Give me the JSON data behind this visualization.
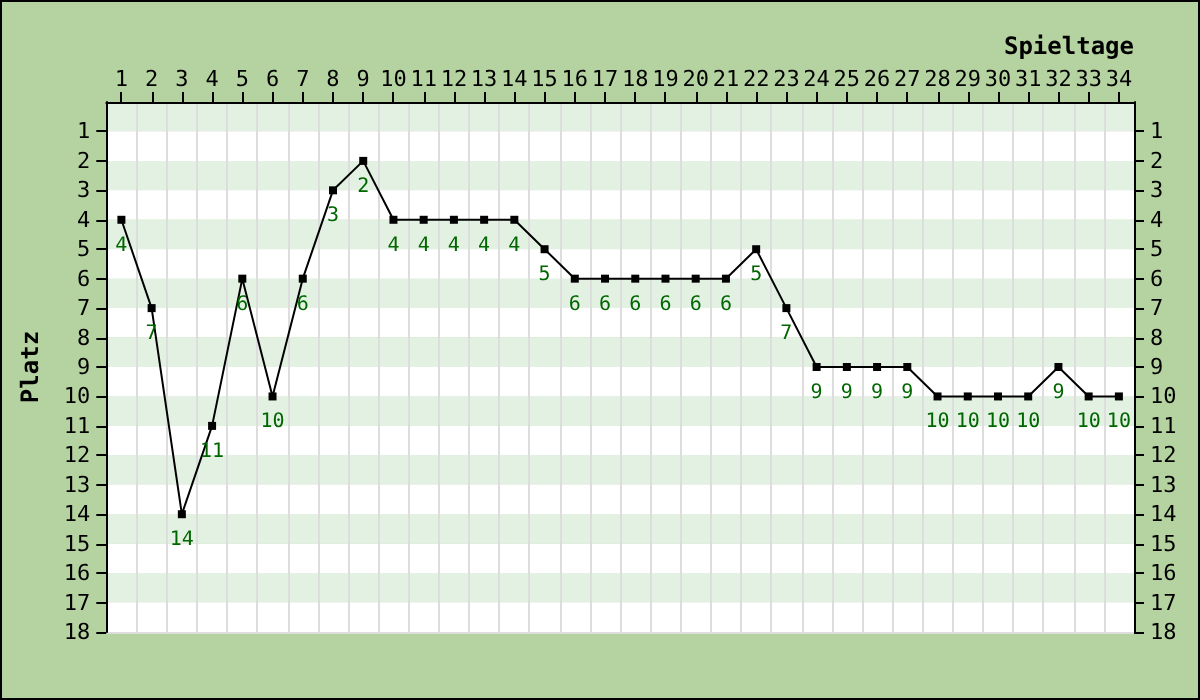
{
  "chart_data": {
    "type": "line",
    "xlabel": "Spieltage",
    "ylabel": "Platz",
    "categories": [
      "1",
      "2",
      "3",
      "4",
      "5",
      "6",
      "7",
      "8",
      "9",
      "10",
      "11",
      "12",
      "13",
      "14",
      "15",
      "16",
      "17",
      "18",
      "19",
      "20",
      "21",
      "22",
      "23",
      "24",
      "25",
      "26",
      "27",
      "28",
      "29",
      "30",
      "31",
      "32",
      "33",
      "34"
    ],
    "series": [
      {
        "color": "#000000",
        "values": [
          4,
          7,
          14,
          11,
          6,
          10,
          6,
          3,
          2,
          4,
          4,
          4,
          4,
          4,
          5,
          6,
          6,
          6,
          6,
          6,
          6,
          5,
          7,
          9,
          9,
          9,
          9,
          10,
          10,
          10,
          10,
          9,
          10,
          10
        ]
      }
    ],
    "ylim": [
      18,
      0
    ],
    "yticks": [
      1,
      2,
      3,
      4,
      5,
      6,
      7,
      8,
      9,
      10,
      11,
      12,
      13,
      14,
      15,
      16,
      17,
      18
    ],
    "y2lim": [
      18,
      0
    ],
    "y2ticks": [
      1,
      2,
      3,
      4,
      5,
      6,
      7,
      8,
      9,
      10,
      11,
      12,
      13,
      14,
      15,
      16,
      17,
      18
    ],
    "grid": true,
    "marker": "square",
    "line_style": "solid",
    "data_labels": true
  }
}
